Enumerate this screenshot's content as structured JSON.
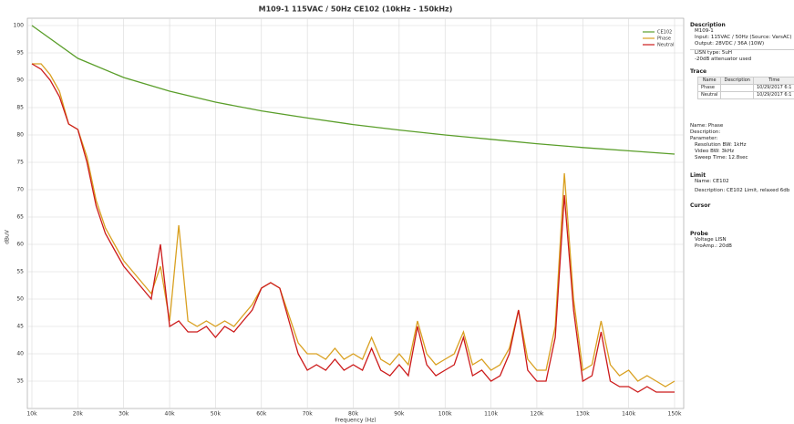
{
  "chart_data": {
    "type": "line",
    "title": "M109-1 115VAC / 50Hz CE102 (10kHz - 150kHz)",
    "x_label": "Frequency (Hz)",
    "y_label": "dBuV",
    "x": [
      10000,
      12000,
      14000,
      16000,
      18000,
      20000,
      22000,
      24000,
      26000,
      28000,
      30000,
      32000,
      34000,
      36000,
      38000,
      40000,
      42000,
      44000,
      46000,
      48000,
      50000,
      52000,
      54000,
      56000,
      58000,
      60000,
      62000,
      64000,
      66000,
      68000,
      70000,
      72000,
      74000,
      76000,
      78000,
      80000,
      82000,
      84000,
      86000,
      88000,
      90000,
      92000,
      94000,
      96000,
      98000,
      100000,
      102000,
      104000,
      106000,
      108000,
      110000,
      112000,
      114000,
      116000,
      118000,
      120000,
      122000,
      124000,
      126000,
      128000,
      130000,
      132000,
      134000,
      136000,
      138000,
      140000,
      142000,
      144000,
      146000,
      148000,
      150000
    ],
    "series": [
      {
        "name": "CE102",
        "color": "#5a9e2a",
        "x": [
          10000,
          20000,
          30000,
          40000,
          50000,
          60000,
          70000,
          80000,
          90000,
          100000,
          110000,
          120000,
          130000,
          140000,
          150000
        ],
        "values": [
          100,
          94,
          90.5,
          88,
          86,
          84.4,
          83.1,
          81.9,
          80.9,
          80,
          79.2,
          78.4,
          77.7,
          77.1,
          76.5
        ]
      },
      {
        "name": "Phase",
        "color": "#d9a020",
        "values": [
          93,
          93,
          91,
          88,
          82,
          81,
          76,
          68,
          63,
          60,
          57,
          55,
          53,
          51,
          56,
          46,
          63.5,
          46,
          45,
          46,
          45,
          46,
          45,
          47,
          49,
          52,
          53,
          52,
          47,
          42,
          40,
          40,
          39,
          41,
          39,
          40,
          39,
          43,
          39,
          38,
          40,
          38,
          46,
          40,
          38,
          39,
          40,
          44,
          38,
          39,
          37,
          38,
          41,
          48,
          39,
          37,
          37,
          45,
          73,
          50,
          37,
          38,
          46,
          38,
          36,
          37,
          35,
          36,
          35,
          34,
          35
        ]
      },
      {
        "name": "Neutral",
        "color": "#cc1a1a",
        "values": [
          93,
          92,
          90,
          87,
          82,
          81,
          75,
          67,
          62,
          59,
          56,
          54,
          52,
          50,
          60,
          45,
          46,
          44,
          44,
          45,
          43,
          45,
          44,
          46,
          48,
          52,
          53,
          52,
          46,
          40,
          37,
          38,
          37,
          39,
          37,
          38,
          37,
          41,
          37,
          36,
          38,
          36,
          45,
          38,
          36,
          37,
          38,
          43,
          36,
          37,
          35,
          36,
          40,
          48,
          37,
          35,
          35,
          43,
          69,
          48,
          35,
          36,
          44,
          35,
          34,
          34,
          33,
          34,
          33,
          33,
          33
        ]
      }
    ],
    "xlim": [
      10000,
      150000
    ],
    "xticks": [
      {
        "value": 10000,
        "label": "10k"
      },
      {
        "value": 20000,
        "label": "20k"
      },
      {
        "value": 30000,
        "label": "30k"
      },
      {
        "value": 40000,
        "label": "40k"
      },
      {
        "value": 50000,
        "label": "50k"
      },
      {
        "value": 60000,
        "label": "60k"
      },
      {
        "value": 70000,
        "label": "70k"
      },
      {
        "value": 80000,
        "label": "80k"
      },
      {
        "value": 90000,
        "label": "90k"
      },
      {
        "value": 100000,
        "label": "100k"
      },
      {
        "value": 110000,
        "label": "110k"
      },
      {
        "value": 120000,
        "label": "120k"
      },
      {
        "value": 130000,
        "label": "130k"
      },
      {
        "value": 140000,
        "label": "140k"
      },
      {
        "value": 150000,
        "label": "150k"
      }
    ],
    "ylim": [
      30,
      100
    ],
    "yticks": [
      35,
      40,
      45,
      50,
      55,
      60,
      65,
      70,
      75,
      80,
      85,
      90,
      95,
      100
    ],
    "grid": true,
    "legend": "top-right"
  },
  "panel": {
    "description": {
      "heading": "Description",
      "lines": [
        "M109-1",
        "Input: 115VAC / 50Hz (Source: VarsAC)",
        "Output: 28VDC / 36A (10W)",
        "LISN type: 5uH",
        "-20dB attenuator used"
      ]
    },
    "trace": {
      "heading": "Trace",
      "columns": [
        "Name",
        "Description",
        "Time"
      ],
      "rows": [
        [
          "Phase",
          "10/29/2017 6:1"
        ],
        [
          "Neutral",
          "10/29/2017 6:1"
        ]
      ],
      "lines": [
        "Name: Phase",
        "Description:",
        "Parameter:"
      ],
      "params": [
        "Resolution BW: 1kHz",
        "Video BW: 3kHz",
        "Sweep Time: 12.8sec"
      ]
    },
    "limit": {
      "heading": "Limit",
      "lines": [
        "Name: CE102",
        "Description: CE102 Limit, relaxed 6db"
      ]
    },
    "cursor": {
      "heading": "Cursor"
    },
    "probe": {
      "heading": "Probe",
      "lines": [
        "Voltage LISN",
        "ProAmp.: 20dB"
      ]
    }
  }
}
